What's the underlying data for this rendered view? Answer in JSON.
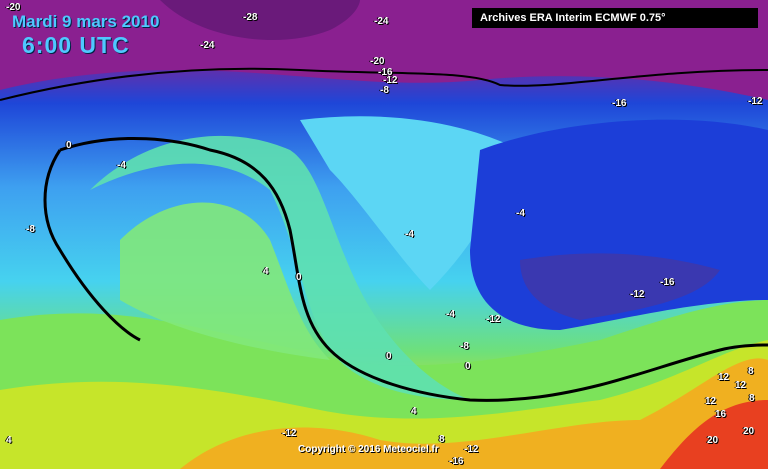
{
  "title": {
    "date": "Mardi 9 mars 2010",
    "time": "6:00 UTC"
  },
  "source": "Archives ERA Interim ECMWF 0.75°",
  "copyright": "Copyright © 2016 Meteociel.fr",
  "isotherm_labels": [
    "-20",
    "-28",
    "-24",
    "-24",
    "-20",
    "-16",
    "-12",
    "-8",
    "-16",
    "-12",
    "0",
    "-4",
    "-8",
    "-4",
    "-4",
    "4",
    "0",
    "-4",
    "-12",
    "-12",
    "-16",
    "-8",
    "0",
    "0",
    "4",
    "-12",
    "4",
    "8",
    "-12",
    "-16",
    "12",
    "8",
    "12",
    "8",
    "12",
    "16",
    "20",
    "20"
  ],
  "colors": {
    "very_cold": "#6a1a7a",
    "cold": "#1e46d8",
    "cool": "#46d2ef",
    "mild": "#6ee07a",
    "warm": "#d0e020",
    "hot": "#e83020",
    "contour": "#000000"
  }
}
